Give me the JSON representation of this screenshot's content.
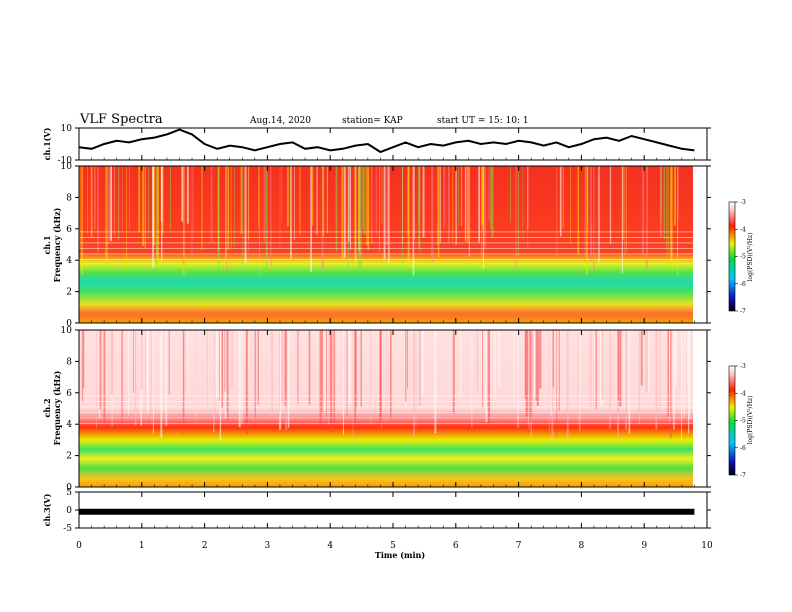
{
  "header": {
    "title": "VLF Spectra",
    "date": "Aug.14, 2020",
    "station": "station= KAP",
    "start": "start  UT =   15: 10: 1"
  },
  "chart_data": [
    {
      "type": "line",
      "name": "ch1-waveform",
      "ylabel": "ch.1(V)",
      "ylim": [
        -10,
        10
      ],
      "yticks": [
        "10",
        "-10"
      ],
      "x": [
        0,
        0.2,
        0.4,
        0.6,
        0.8,
        1.0,
        1.2,
        1.4,
        1.6,
        1.8,
        2.0,
        2.2,
        2.4,
        2.6,
        2.8,
        3.0,
        3.2,
        3.4,
        3.6,
        3.8,
        4.0,
        4.2,
        4.4,
        4.6,
        4.8,
        5.0,
        5.2,
        5.4,
        5.6,
        5.8,
        6.0,
        6.2,
        6.4,
        6.6,
        6.8,
        7.0,
        7.2,
        7.4,
        7.6,
        7.8,
        8.0,
        8.2,
        8.4,
        8.6,
        8.8,
        9.0,
        9.2,
        9.4,
        9.6,
        9.8
      ],
      "y": [
        -2,
        -3,
        0,
        2,
        1,
        3,
        4,
        6,
        9,
        6,
        0,
        -3,
        -1,
        -2,
        -4,
        -2,
        0,
        1,
        -3,
        -2,
        -4,
        -3,
        -1,
        0,
        -5,
        -2,
        1,
        -2,
        0,
        -1,
        1,
        2,
        0,
        1,
        0,
        2,
        1,
        -1,
        1,
        -2,
        0,
        3,
        4,
        2,
        5,
        3,
        1,
        -1,
        -3,
        -4
      ]
    },
    {
      "type": "heatmap",
      "name": "ch1-spectrogram",
      "ylabel": "ch.1\nFrequency (kHz)",
      "ylim": [
        0,
        10
      ],
      "yticks": [
        "0",
        "2",
        "4",
        "6",
        "8",
        "10"
      ],
      "colorbar": {
        "label": "log(PSD)(V²/Hz)",
        "range": [
          -7,
          -3
        ],
        "ticks": [
          "-3",
          "-4",
          "-5",
          "-6",
          "-7"
        ]
      }
    },
    {
      "type": "heatmap",
      "name": "ch2-spectrogram",
      "ylabel": "ch.2\nFrequency (kHz)",
      "ylim": [
        0,
        10
      ],
      "yticks": [
        "0",
        "2",
        "4",
        "6",
        "8",
        "10"
      ],
      "colorbar": {
        "label": "log(PSD)(V²/Hz)",
        "range": [
          -7,
          -3
        ],
        "ticks": [
          "-3",
          "-4",
          "-5",
          "-6",
          "-7"
        ]
      }
    },
    {
      "type": "line",
      "name": "ch3-waveform",
      "ylabel": "ch.3(V)",
      "ylim": [
        -5,
        5
      ],
      "yticks": [
        "5",
        "0",
        "-5"
      ],
      "x": [
        0,
        9.8
      ],
      "y": [
        -0.5,
        -0.5
      ]
    }
  ],
  "xaxis": {
    "label": "Time (min)",
    "ticks": [
      "0",
      "1",
      "2",
      "3",
      "4",
      "5",
      "6",
      "7",
      "8",
      "9",
      "10"
    ],
    "range": [
      0,
      10
    ]
  }
}
